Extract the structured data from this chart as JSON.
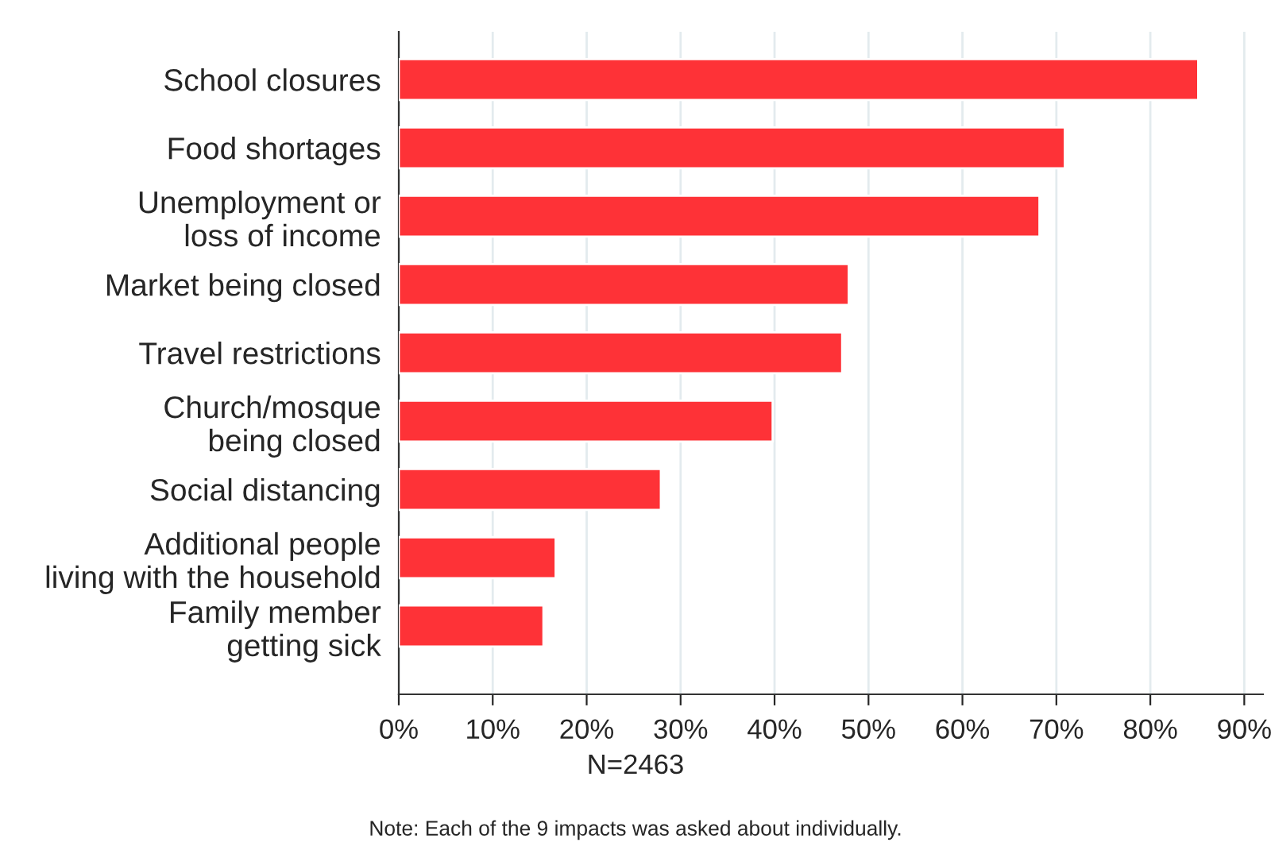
{
  "chart_data": {
    "type": "bar",
    "orientation": "horizontal",
    "categories": [
      "School closures",
      "Food shortages",
      "Unemployment or\nloss of income",
      "Market being closed",
      "Travel restrictions",
      "Church/mosque\nbeing closed",
      "Social distancing",
      "Additional people\nliving with the household",
      "Family member\ngetting sick"
    ],
    "values": [
      85.1,
      70.9,
      68.2,
      47.9,
      47.2,
      39.8,
      27.9,
      16.7,
      15.4
    ],
    "color": "#fe3237",
    "xlim": [
      0,
      92
    ],
    "xticks": [
      {
        "value": 0,
        "label": "0%"
      },
      {
        "value": 10,
        "label": "10%"
      },
      {
        "value": 20,
        "label": "20%"
      },
      {
        "value": 30,
        "label": "30%"
      },
      {
        "value": 40,
        "label": "40%"
      },
      {
        "value": 50,
        "label": "50%"
      },
      {
        "value": 60,
        "label": "60%"
      },
      {
        "value": 70,
        "label": "70%"
      },
      {
        "value": 80,
        "label": "80%"
      },
      {
        "value": 90,
        "label": "90%"
      }
    ],
    "grid": "x",
    "annotations": [
      "N=2463",
      "Note: Each of the 9 impacts was asked about individually."
    ]
  }
}
